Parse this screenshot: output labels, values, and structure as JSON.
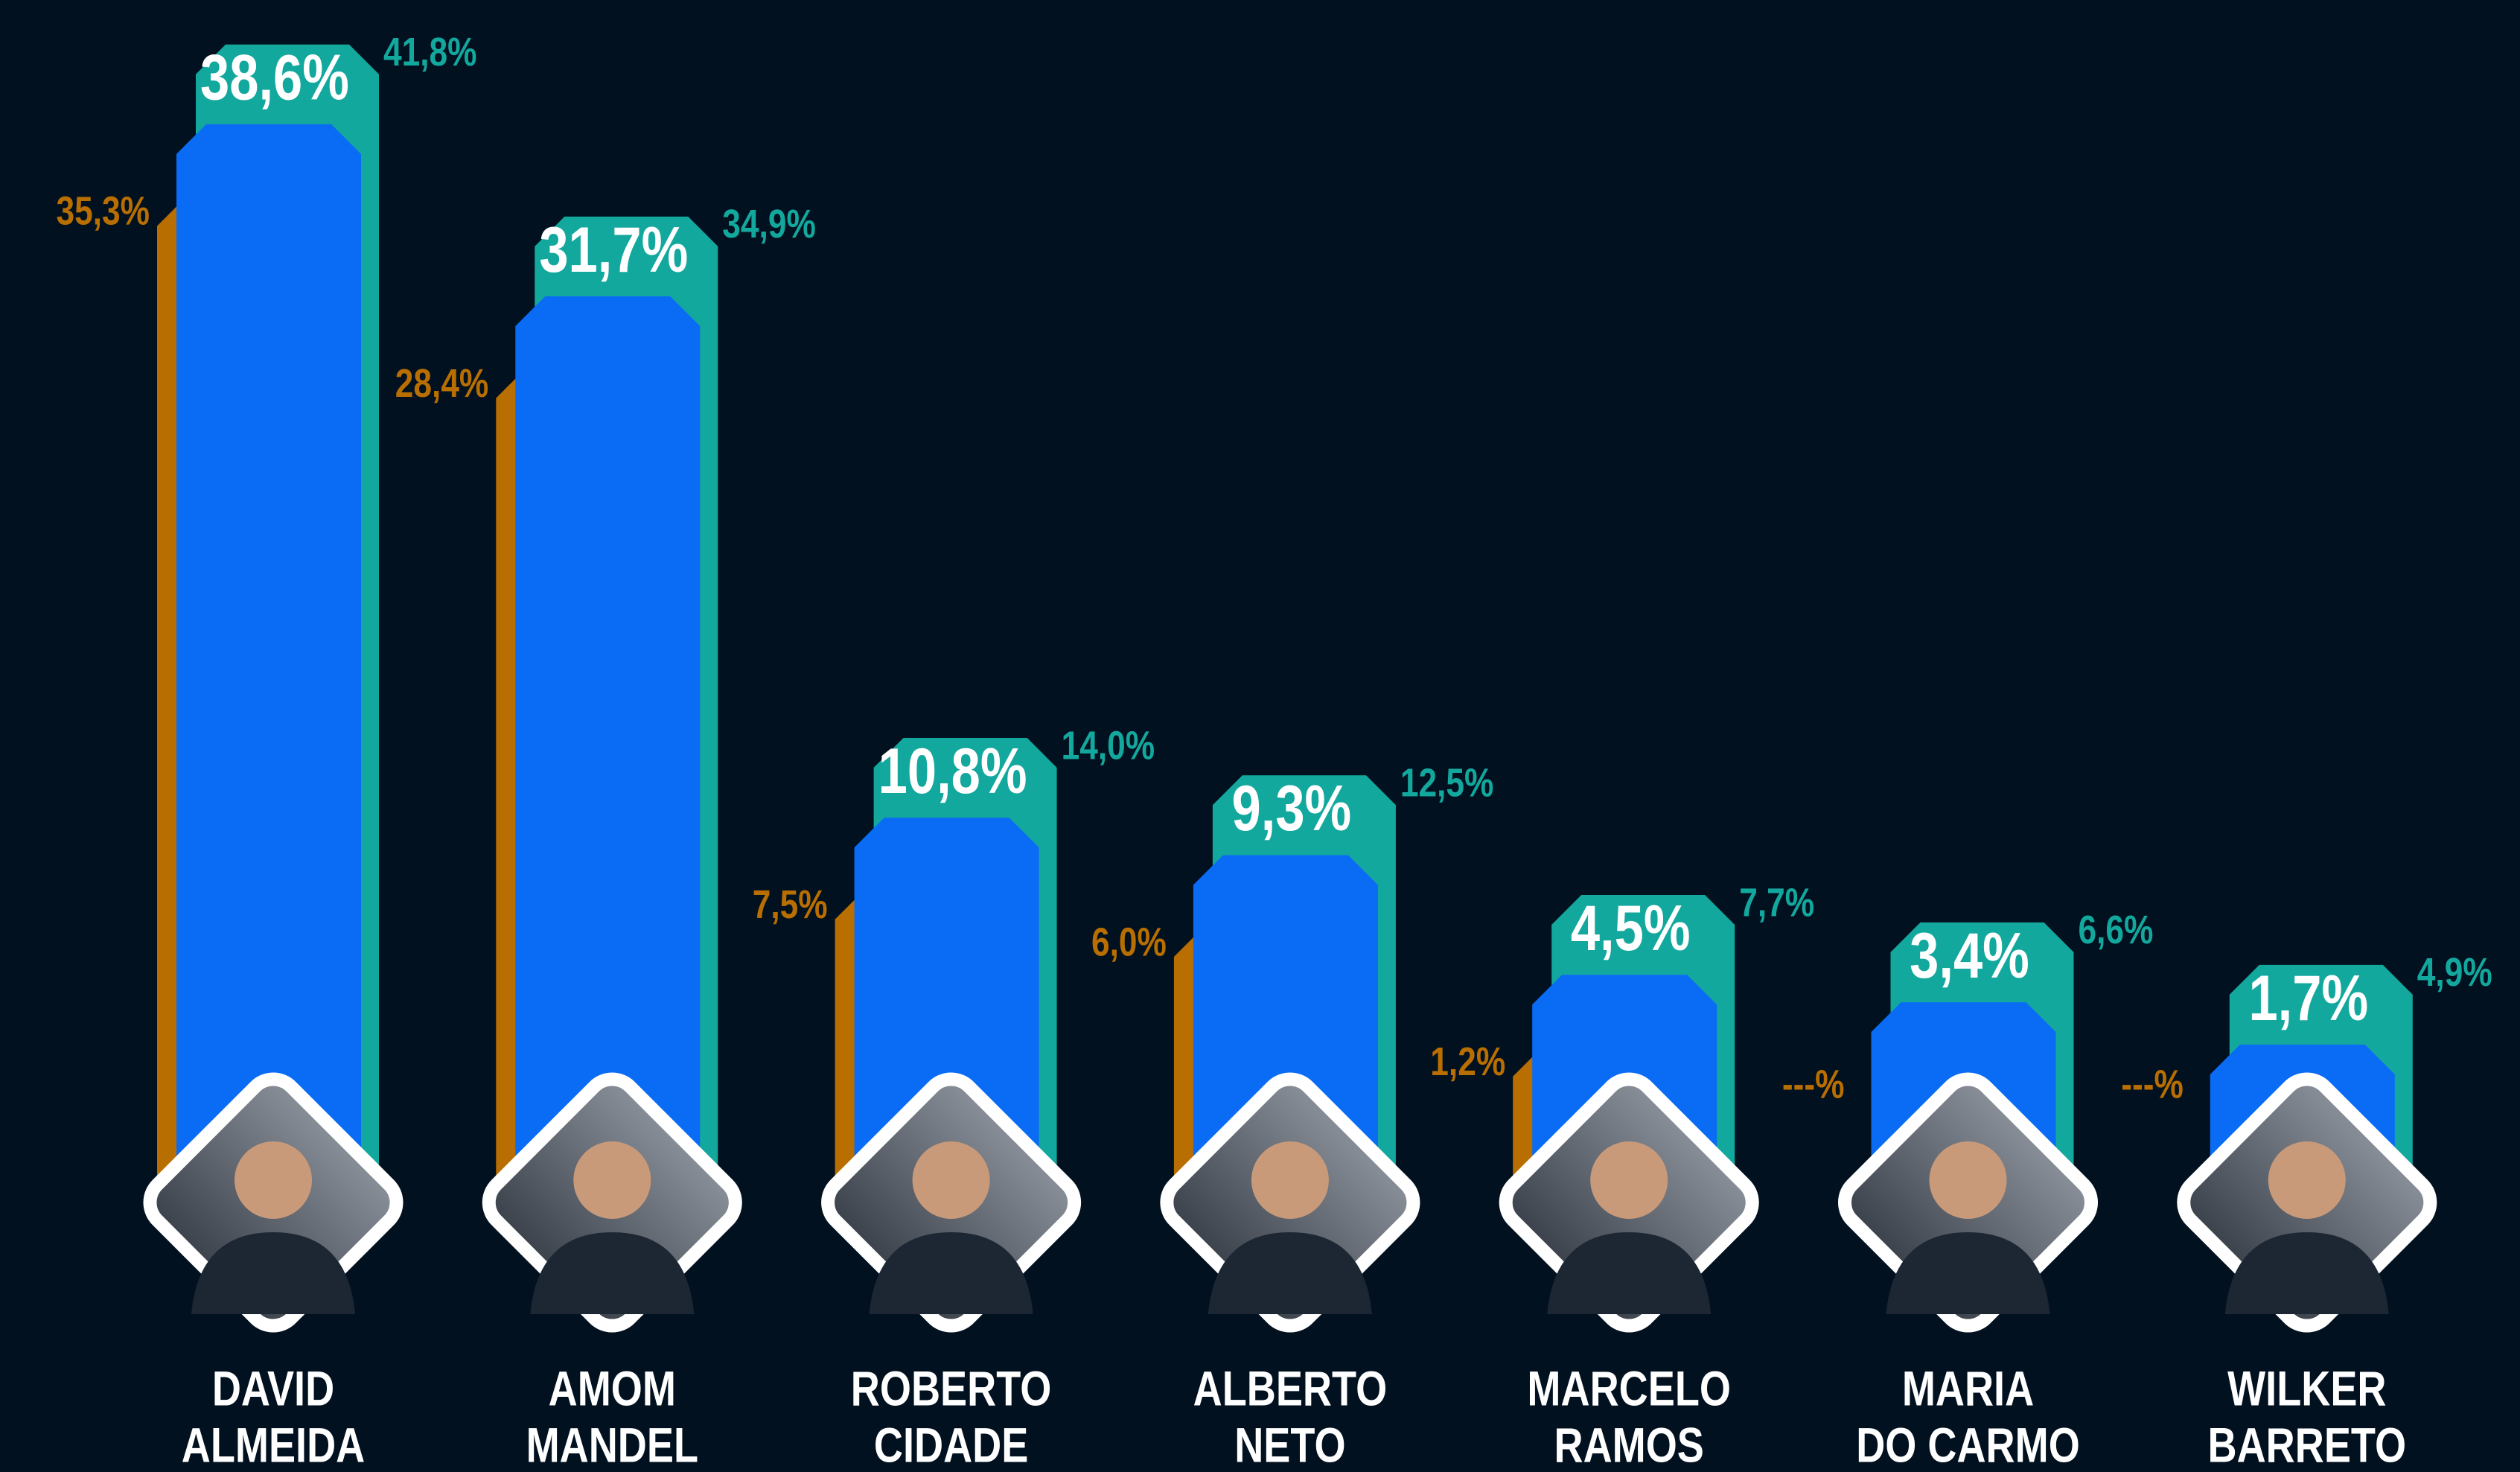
{
  "chart_data": {
    "type": "bar",
    "categories": [
      [
        "DAVID",
        "ALMEIDA"
      ],
      [
        "AMOM",
        "MANDEL"
      ],
      [
        "ROBERTO",
        "CIDADE"
      ],
      [
        "ALBERTO",
        "NETO"
      ],
      [
        "MARCELO",
        "RAMOS"
      ],
      [
        "MARIA",
        "DO CARMO"
      ],
      [
        "WILKER",
        "BARRETO"
      ]
    ],
    "series": [
      {
        "color": "#13a89e",
        "values": [
          41.8,
          34.9,
          14.0,
          12.5,
          7.7,
          6.6,
          4.9
        ],
        "value_labels": [
          "41,8%",
          "34,9%",
          "14,0%",
          "12,5%",
          "7,7%",
          "6,6%",
          "4,9%"
        ]
      },
      {
        "color": "#b86e00",
        "values": [
          35.3,
          28.4,
          7.5,
          6.0,
          1.2,
          null,
          null
        ],
        "value_labels": [
          "35,3%",
          "28,4%",
          "7,5%",
          "6,0%",
          "1,2%",
          "---%",
          "---%"
        ]
      },
      {
        "color": "#0a6cf5",
        "values": [
          38.6,
          31.7,
          10.8,
          9.3,
          4.5,
          3.4,
          1.7
        ],
        "value_labels": [
          "38,6%",
          "31,7%",
          "10,8%",
          "9,3%",
          "4,5%",
          "3,4%",
          "1,7%"
        ]
      }
    ]
  }
}
